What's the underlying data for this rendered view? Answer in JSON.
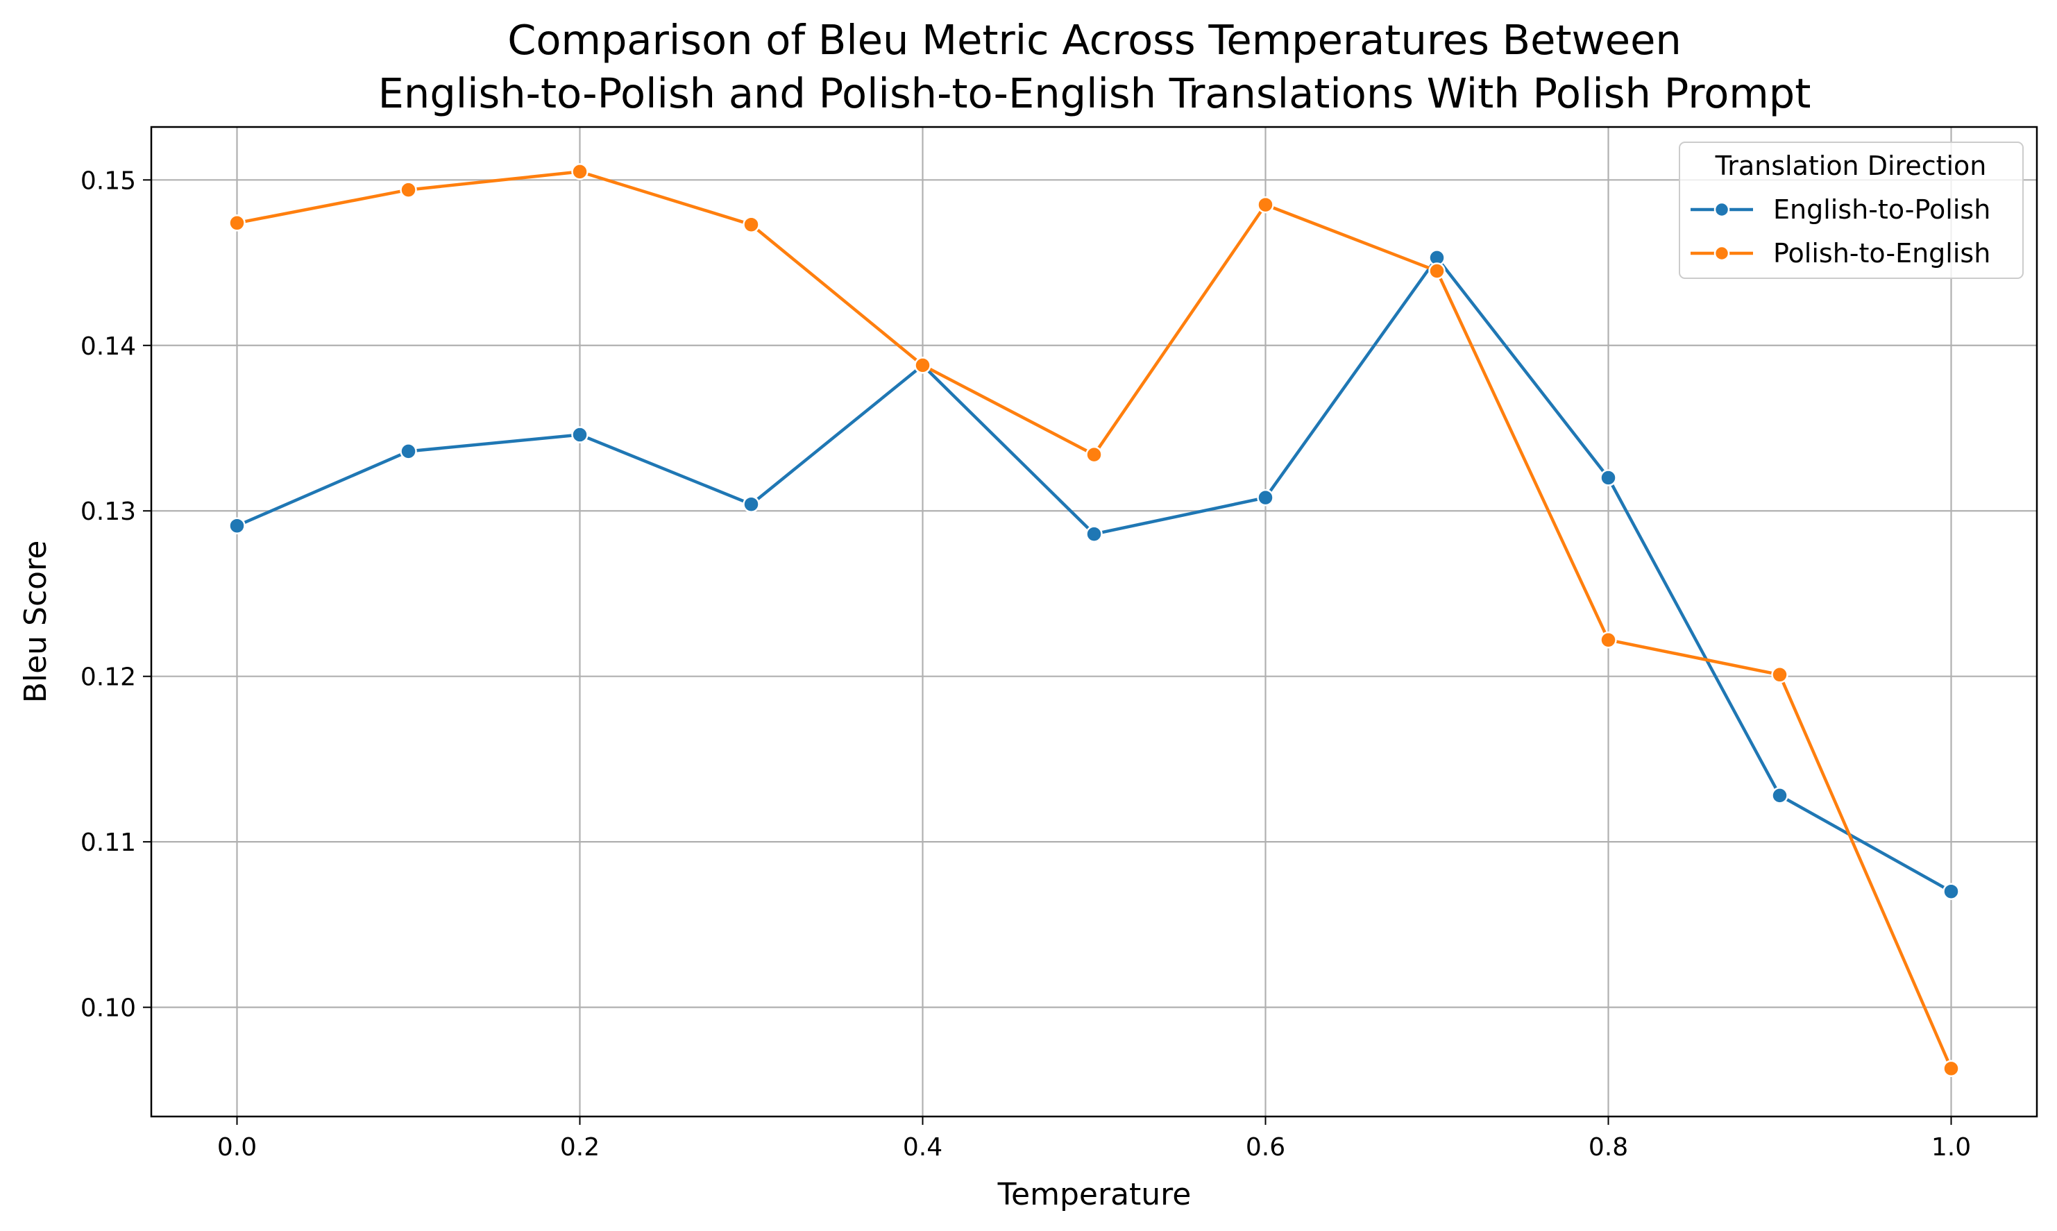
{
  "chart_data": {
    "type": "line",
    "title_lines": [
      "Comparison of Bleu Metric Across Temperatures Between",
      "English-to-Polish and Polish-to-English Translations With Polish Prompt"
    ],
    "xlabel": "Temperature",
    "ylabel": "Bleu Score",
    "xlim": [
      -0.05,
      1.05
    ],
    "ylim": [
      0.0934,
      0.1532
    ],
    "x_ticks": [
      0.0,
      0.2,
      0.4,
      0.6,
      0.8,
      1.0
    ],
    "x_tick_labels": [
      "0.0",
      "0.2",
      "0.4",
      "0.6",
      "0.8",
      "1.0"
    ],
    "y_ticks": [
      0.1,
      0.11,
      0.12,
      0.13,
      0.14,
      0.15
    ],
    "y_tick_labels": [
      "0.10",
      "0.11",
      "0.12",
      "0.13",
      "0.14",
      "0.15"
    ],
    "grid": true,
    "legend": {
      "title": "Translation Direction",
      "placement": "top-right"
    },
    "x": [
      0.0,
      0.1,
      0.2,
      0.3,
      0.4,
      0.5,
      0.6,
      0.7,
      0.8,
      0.9,
      1.0
    ],
    "series": [
      {
        "name": "English-to-Polish",
        "color": "#1f77b4",
        "values": [
          0.1291,
          0.1336,
          0.1346,
          0.1304,
          0.1388,
          0.1286,
          0.1308,
          0.1453,
          0.132,
          0.1128,
          0.107
        ]
      },
      {
        "name": "Polish-to-English",
        "color": "#ff7f0e",
        "values": [
          0.1474,
          0.1494,
          0.1505,
          0.1473,
          0.1388,
          0.1334,
          0.1485,
          0.1445,
          0.1222,
          0.1201,
          0.0963
        ]
      }
    ]
  }
}
